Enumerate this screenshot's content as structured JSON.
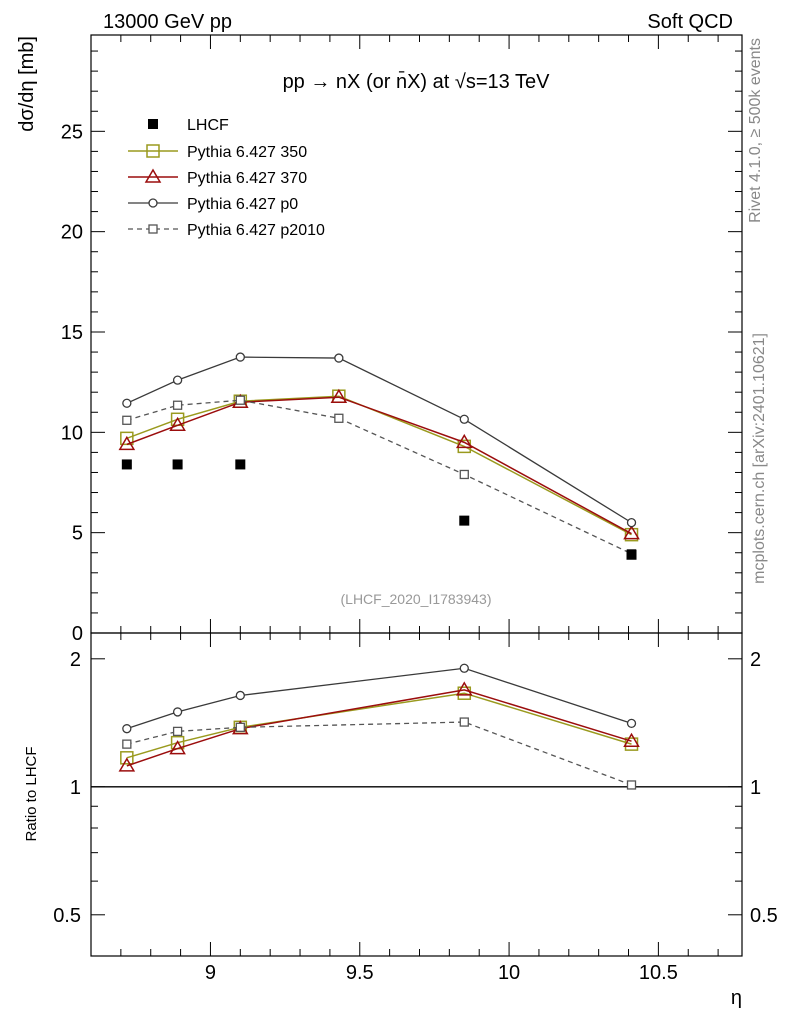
{
  "header": {
    "left": "13000 GeV pp",
    "right": "Soft QCD"
  },
  "side_labels": {
    "rivet": "Rivet 4.1.0, ≥ 500k events",
    "mcplots": "mcplots.cern.ch [arXiv:2401.10621]"
  },
  "colors": {
    "lhcf": "#000000",
    "p350": "#9a9a1e",
    "p370": "#9b0d0d",
    "p0": "#3a3a3a",
    "p2010": "#555555",
    "watermark": "#999999"
  },
  "chart_data": [
    {
      "type": "line",
      "title": "pp → nX (or n̄X) at √s=13 TeV",
      "ylabel": "dσ/dη [mb]",
      "xlabel": "",
      "xlim": [
        8.6,
        10.78
      ],
      "ylim": [
        0,
        29.8
      ],
      "yticks": [
        0,
        5,
        10,
        15,
        20,
        25
      ],
      "ytick_labels": [
        "0",
        "5",
        "10",
        "15",
        "20",
        "25"
      ],
      "watermark": "(LHCF_2020_I1783943)",
      "x": [
        8.72,
        8.89,
        9.1,
        9.43,
        9.85,
        10.41
      ],
      "data_label": "LHCF",
      "data": {
        "name": "LHCF",
        "x": [
          8.72,
          8.89,
          9.1,
          9.85,
          10.41
        ],
        "values": [
          8.4,
          8.4,
          8.4,
          5.6,
          3.9
        ]
      },
      "series": [
        {
          "name": "Pythia 6.427 350",
          "key": "p350",
          "values": [
            9.7,
            10.65,
            11.55,
            11.8,
            9.3,
            4.9
          ]
        },
        {
          "name": "Pythia 6.427 370",
          "key": "p370",
          "values": [
            9.4,
            10.35,
            11.5,
            11.75,
            9.5,
            4.95
          ]
        },
        {
          "name": "Pythia 6.427 p0",
          "key": "p0",
          "values": [
            11.45,
            12.6,
            13.75,
            13.7,
            10.65,
            5.5
          ]
        },
        {
          "name": "Pythia 6.427 p2010",
          "key": "p2010",
          "values": [
            10.6,
            11.35,
            11.6,
            10.7,
            7.9,
            3.95
          ]
        }
      ]
    },
    {
      "type": "line",
      "ylabel": "Ratio to LHCF",
      "xlabel": "η",
      "xlim": [
        8.6,
        10.78
      ],
      "ylim": [
        0.4,
        2.3
      ],
      "log_y": true,
      "yticks": [
        0.5,
        1,
        2
      ],
      "ytick_labels": [
        "0.5",
        "1",
        "2"
      ],
      "xticks": [
        9,
        9.5,
        10,
        10.5
      ],
      "xtick_labels": [
        "9",
        "9.5",
        "10",
        "10.5"
      ],
      "x": [
        8.72,
        8.89,
        9.1,
        9.85,
        10.41
      ],
      "reference": 1,
      "series": [
        {
          "name": "Pythia 6.427 350",
          "key": "p350",
          "values": [
            1.17,
            1.27,
            1.38,
            1.66,
            1.26
          ]
        },
        {
          "name": "Pythia 6.427 370",
          "key": "p370",
          "values": [
            1.12,
            1.23,
            1.37,
            1.69,
            1.28
          ]
        },
        {
          "name": "Pythia 6.427 p0",
          "key": "p0",
          "values": [
            1.37,
            1.5,
            1.64,
            1.9,
            1.41
          ]
        },
        {
          "name": "Pythia 6.427 p2010",
          "key": "p2010",
          "values": [
            1.26,
            1.35,
            1.38,
            1.42,
            1.01
          ]
        }
      ]
    }
  ]
}
